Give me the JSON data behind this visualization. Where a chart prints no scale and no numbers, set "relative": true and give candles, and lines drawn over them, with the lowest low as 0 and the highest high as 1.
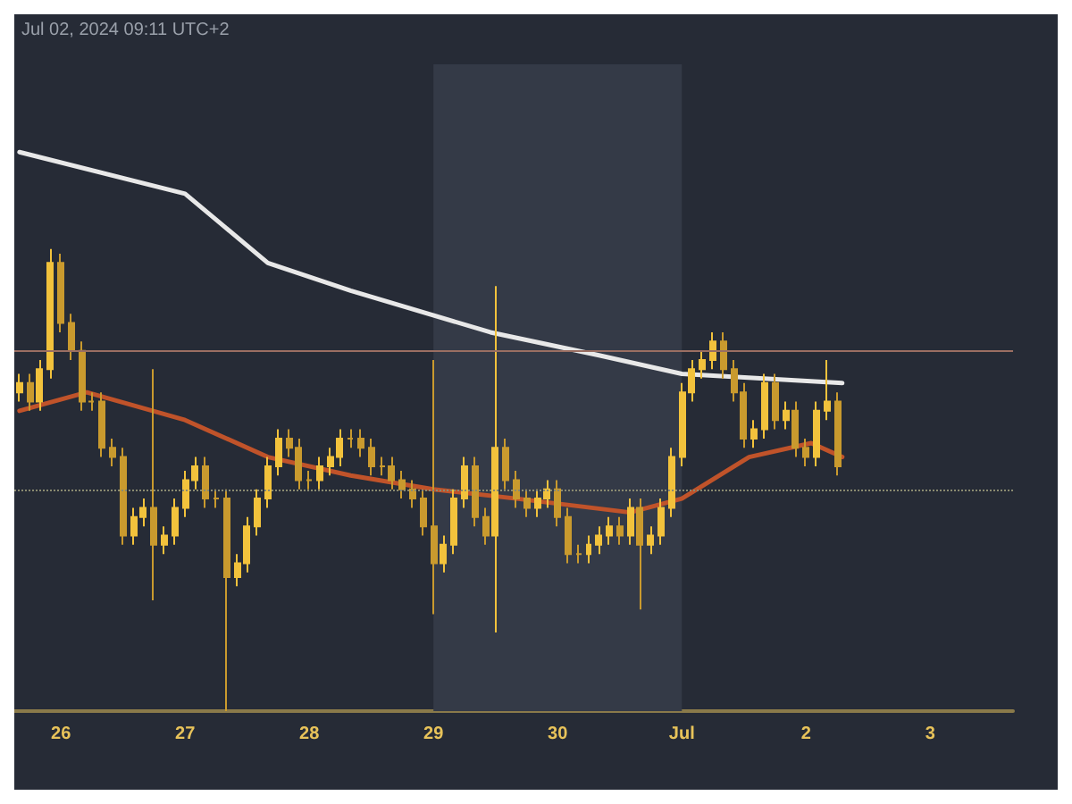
{
  "chart_data": {
    "type": "candlestick",
    "relative": true,
    "colors": [
      "#f2c23c",
      "#c99a2e",
      "#f2c23c",
      "#f2c23c",
      "#c99a2e",
      "#c99a2e",
      "#c99a2e",
      "#c99a2e",
      "#c99a2e",
      "#c99a2e",
      "#c99a2e",
      "#f2c23c",
      "#f2c23c",
      "#c99a2e",
      "#f2c23c",
      "#f2c23c",
      "#f2c23c",
      "#f2c23c",
      "#c99a2e",
      "#c99a2e",
      "#c99a2e",
      "#f2c23c",
      "#f2c23c",
      "#f2c23c",
      "#f2c23c",
      "#f2c23c",
      "#c99a2e",
      "#c99a2e",
      "#c99a2e",
      "#f2c23c",
      "#f2c23c",
      "#f2c23c",
      "#c99a2e",
      "#c99a2e",
      "#c99a2e",
      "#c99a2e",
      "#c99a2e",
      "#c99a2e",
      "#c99a2e",
      "#c99a2e",
      "#c99a2e",
      "#f2c23c",
      "#f2c23c",
      "#f2c23c",
      "#c99a2e",
      "#c99a2e",
      "#f2c23c",
      "#c99a2e",
      "#c99a2e",
      "#c99a2e",
      "#f2c23c",
      "#f2c23c",
      "#c99a2e",
      "#c99a2e",
      "#c99a2e",
      "#f2c23c",
      "#f2c23c",
      "#f2c23c",
      "#c99a2e",
      "#f2c23c",
      "#c99a2e",
      "#f2c23c",
      "#f2c23c",
      "#f2c23c",
      "#f2c23c",
      "#f2c23c",
      "#f2c23c",
      "#f2c23c",
      "#c99a2e",
      "#c99a2e",
      "#c99a2e",
      "#f2c23c",
      "#f2c23c",
      "#c99a2e",
      "#f2c23c",
      "#c99a2e",
      "#c99a2e",
      "#f2c23c",
      "#f2c23c",
      "#c99a2e"
    ],
    "annotations": [
      "Jul 02, 2024 09:11 UTC+2"
    ],
    "xlim": [
      "2024-06-25T15:00",
      "2024-07-03T16:00"
    ],
    "xticks": [
      {
        "value": "2024-06-26",
        "label": "26"
      },
      {
        "value": "2024-06-27",
        "label": "27"
      },
      {
        "value": "2024-06-28",
        "label": "28"
      },
      {
        "value": "2024-06-29",
        "label": "29"
      },
      {
        "value": "2024-06-30",
        "label": "30"
      },
      {
        "value": "2024-07-01",
        "label": "Jul"
      },
      {
        "value": "2024-07-02",
        "label": "2"
      },
      {
        "value": "2024-07-03",
        "label": "3"
      }
    ],
    "x": [
      "2024-06-25T16:00",
      "2024-06-25T18:00",
      "2024-06-25T20:00",
      "2024-06-25T22:00",
      "2024-06-26T00:00",
      "2024-06-26T02:00",
      "2024-06-26T04:00",
      "2024-06-26T06:00",
      "2024-06-26T08:00",
      "2024-06-26T10:00",
      "2024-06-26T12:00",
      "2024-06-26T14:00",
      "2024-06-26T16:00",
      "2024-06-26T18:00",
      "2024-06-26T20:00",
      "2024-06-26T22:00",
      "2024-06-27T00:00",
      "2024-06-27T02:00",
      "2024-06-27T04:00",
      "2024-06-27T06:00",
      "2024-06-27T08:00",
      "2024-06-27T10:00",
      "2024-06-27T12:00",
      "2024-06-27T14:00",
      "2024-06-27T16:00",
      "2024-06-27T18:00",
      "2024-06-27T20:00",
      "2024-06-27T22:00",
      "2024-06-28T00:00",
      "2024-06-28T02:00",
      "2024-06-28T04:00",
      "2024-06-28T06:00",
      "2024-06-28T08:00",
      "2024-06-28T10:00",
      "2024-06-28T12:00",
      "2024-06-28T14:00",
      "2024-06-28T16:00",
      "2024-06-28T18:00",
      "2024-06-28T20:00",
      "2024-06-28T22:00",
      "2024-06-29T00:00",
      "2024-06-29T02:00",
      "2024-06-29T04:00",
      "2024-06-29T06:00",
      "2024-06-29T08:00",
      "2024-06-29T10:00",
      "2024-06-29T12:00",
      "2024-06-29T14:00",
      "2024-06-29T16:00",
      "2024-06-29T18:00",
      "2024-06-29T20:00",
      "2024-06-29T22:00",
      "2024-06-30T00:00",
      "2024-06-30T02:00",
      "2024-06-30T04:00",
      "2024-06-30T06:00",
      "2024-06-30T08:00",
      "2024-06-30T10:00",
      "2024-06-30T12:00",
      "2024-06-30T14:00",
      "2024-06-30T16:00",
      "2024-06-30T18:00",
      "2024-06-30T20:00",
      "2024-06-30T22:00",
      "2024-07-01T00:00",
      "2024-07-01T02:00",
      "2024-07-01T04:00",
      "2024-07-01T06:00",
      "2024-07-01T08:00",
      "2024-07-01T10:00",
      "2024-07-01T12:00",
      "2024-07-01T14:00",
      "2024-07-01T16:00",
      "2024-07-01T18:00",
      "2024-07-01T20:00",
      "2024-07-01T22:00",
      "2024-07-02T00:00",
      "2024-07-02T02:00",
      "2024-07-02T04:00",
      "2024-07-02T06:00"
    ],
    "ohlc": [
      [
        0.69,
        0.73,
        0.67,
        0.71
      ],
      [
        0.71,
        0.73,
        0.65,
        0.67
      ],
      [
        0.67,
        0.76,
        0.65,
        0.74
      ],
      [
        0.74,
        1.0,
        0.72,
        0.97
      ],
      [
        0.97,
        0.99,
        0.82,
        0.84
      ],
      [
        0.84,
        0.86,
        0.76,
        0.78
      ],
      [
        0.78,
        0.8,
        0.65,
        0.67
      ],
      [
        0.67,
        0.69,
        0.65,
        0.67
      ],
      [
        0.67,
        0.69,
        0.55,
        0.57
      ],
      [
        0.57,
        0.59,
        0.53,
        0.55
      ],
      [
        0.55,
        0.57,
        0.36,
        0.38
      ],
      [
        0.38,
        0.44,
        0.36,
        0.42
      ],
      [
        0.42,
        0.46,
        0.4,
        0.44
      ],
      [
        0.44,
        0.74,
        0.24,
        0.36
      ],
      [
        0.36,
        0.4,
        0.34,
        0.38
      ],
      [
        0.38,
        0.46,
        0.36,
        0.44
      ],
      [
        0.44,
        0.52,
        0.42,
        0.5
      ],
      [
        0.5,
        0.55,
        0.48,
        0.53
      ],
      [
        0.53,
        0.55,
        0.44,
        0.46
      ],
      [
        0.46,
        0.48,
        0.44,
        0.46
      ],
      [
        0.46,
        0.48,
        0.0,
        0.29
      ],
      [
        0.29,
        0.34,
        0.27,
        0.32
      ],
      [
        0.32,
        0.42,
        0.3,
        0.4
      ],
      [
        0.4,
        0.48,
        0.38,
        0.46
      ],
      [
        0.46,
        0.55,
        0.44,
        0.53
      ],
      [
        0.53,
        0.61,
        0.51,
        0.59
      ],
      [
        0.59,
        0.61,
        0.55,
        0.57
      ],
      [
        0.57,
        0.59,
        0.48,
        0.5
      ],
      [
        0.5,
        0.52,
        0.48,
        0.5
      ],
      [
        0.5,
        0.55,
        0.48,
        0.53
      ],
      [
        0.53,
        0.57,
        0.51,
        0.55
      ],
      [
        0.55,
        0.61,
        0.53,
        0.59
      ],
      [
        0.59,
        0.61,
        0.57,
        0.59
      ],
      [
        0.59,
        0.61,
        0.55,
        0.57
      ],
      [
        0.57,
        0.59,
        0.51,
        0.53
      ],
      [
        0.53,
        0.55,
        0.51,
        0.53
      ],
      [
        0.53,
        0.55,
        0.48,
        0.5
      ],
      [
        0.5,
        0.52,
        0.46,
        0.48
      ],
      [
        0.48,
        0.5,
        0.44,
        0.46
      ],
      [
        0.46,
        0.48,
        0.38,
        0.4
      ],
      [
        0.4,
        0.76,
        0.21,
        0.32
      ],
      [
        0.32,
        0.38,
        0.3,
        0.36
      ],
      [
        0.36,
        0.48,
        0.34,
        0.46
      ],
      [
        0.46,
        0.55,
        0.44,
        0.53
      ],
      [
        0.53,
        0.55,
        0.4,
        0.42
      ],
      [
        0.42,
        0.44,
        0.36,
        0.38
      ],
      [
        0.38,
        0.92,
        0.17,
        0.57
      ],
      [
        0.57,
        0.59,
        0.48,
        0.5
      ],
      [
        0.5,
        0.52,
        0.44,
        0.46
      ],
      [
        0.46,
        0.48,
        0.42,
        0.44
      ],
      [
        0.44,
        0.48,
        0.42,
        0.46
      ],
      [
        0.46,
        0.5,
        0.44,
        0.48
      ],
      [
        0.48,
        0.5,
        0.4,
        0.42
      ],
      [
        0.42,
        0.44,
        0.32,
        0.34
      ],
      [
        0.34,
        0.36,
        0.32,
        0.34
      ],
      [
        0.34,
        0.38,
        0.32,
        0.36
      ],
      [
        0.36,
        0.4,
        0.34,
        0.38
      ],
      [
        0.38,
        0.42,
        0.36,
        0.4
      ],
      [
        0.4,
        0.42,
        0.36,
        0.38
      ],
      [
        0.38,
        0.46,
        0.36,
        0.44
      ],
      [
        0.44,
        0.46,
        0.22,
        0.36
      ],
      [
        0.36,
        0.4,
        0.34,
        0.38
      ],
      [
        0.38,
        0.46,
        0.36,
        0.44
      ],
      [
        0.44,
        0.57,
        0.42,
        0.55
      ],
      [
        0.55,
        0.71,
        0.53,
        0.69
      ],
      [
        0.69,
        0.76,
        0.67,
        0.74
      ],
      [
        0.74,
        0.78,
        0.72,
        0.76
      ],
      [
        0.76,
        0.82,
        0.74,
        0.8
      ],
      [
        0.8,
        0.82,
        0.72,
        0.74
      ],
      [
        0.74,
        0.76,
        0.67,
        0.69
      ],
      [
        0.69,
        0.71,
        0.57,
        0.59
      ],
      [
        0.59,
        0.63,
        0.57,
        0.61
      ],
      [
        0.61,
        0.73,
        0.59,
        0.71
      ],
      [
        0.71,
        0.73,
        0.61,
        0.63
      ],
      [
        0.63,
        0.67,
        0.61,
        0.65
      ],
      [
        0.65,
        0.67,
        0.55,
        0.57
      ],
      [
        0.57,
        0.59,
        0.53,
        0.55
      ],
      [
        0.55,
        0.67,
        0.53,
        0.65
      ],
      [
        0.65,
        0.76,
        0.63,
        0.67
      ],
      [
        0.67,
        0.69,
        0.51,
        0.53
      ]
    ],
    "series": [
      {
        "type": "line",
        "color": "#e8e8e8",
        "x": [
          "2024-06-25T16:00",
          "2024-06-27T00:00",
          "2024-06-27T16:00",
          "2024-06-28T08:00",
          "2024-06-29T11:00",
          "2024-06-30T08:00",
          "2024-07-01T00:00",
          "2024-07-02T07:00"
        ],
        "values": [
          1.21,
          1.12,
          0.97,
          0.91,
          0.82,
          0.77,
          0.73,
          0.71
        ]
      },
      {
        "type": "line",
        "color": "#c0532a",
        "x": [
          "2024-06-25T16:00",
          "2024-06-26T05:00",
          "2024-06-27T00:00",
          "2024-06-27T16:00",
          "2024-06-28T08:00",
          "2024-06-29T00:00",
          "2024-06-29T16:00",
          "2024-06-30T14:00",
          "2024-07-01T00:00",
          "2024-07-01T13:00",
          "2024-07-02T01:00",
          "2024-07-02T07:00"
        ],
        "values": [
          0.65,
          0.69,
          0.63,
          0.55,
          0.51,
          0.48,
          0.46,
          0.43,
          0.46,
          0.55,
          0.58,
          0.55
        ]
      }
    ],
    "ref_lines": [
      {
        "axis": "y",
        "value": 0.78,
        "color": "#9a6e62",
        "line_style": "solid"
      },
      {
        "axis": "y",
        "value": 0.48,
        "color": "#8a8a70",
        "line_style": "dotted"
      }
    ],
    "bands": [
      {
        "axis": "x",
        "from": "2024-06-29",
        "to": "2024-07-01",
        "color": "#343a47"
      }
    ],
    "grid": false,
    "marker": "none",
    "line_style": "solid"
  }
}
